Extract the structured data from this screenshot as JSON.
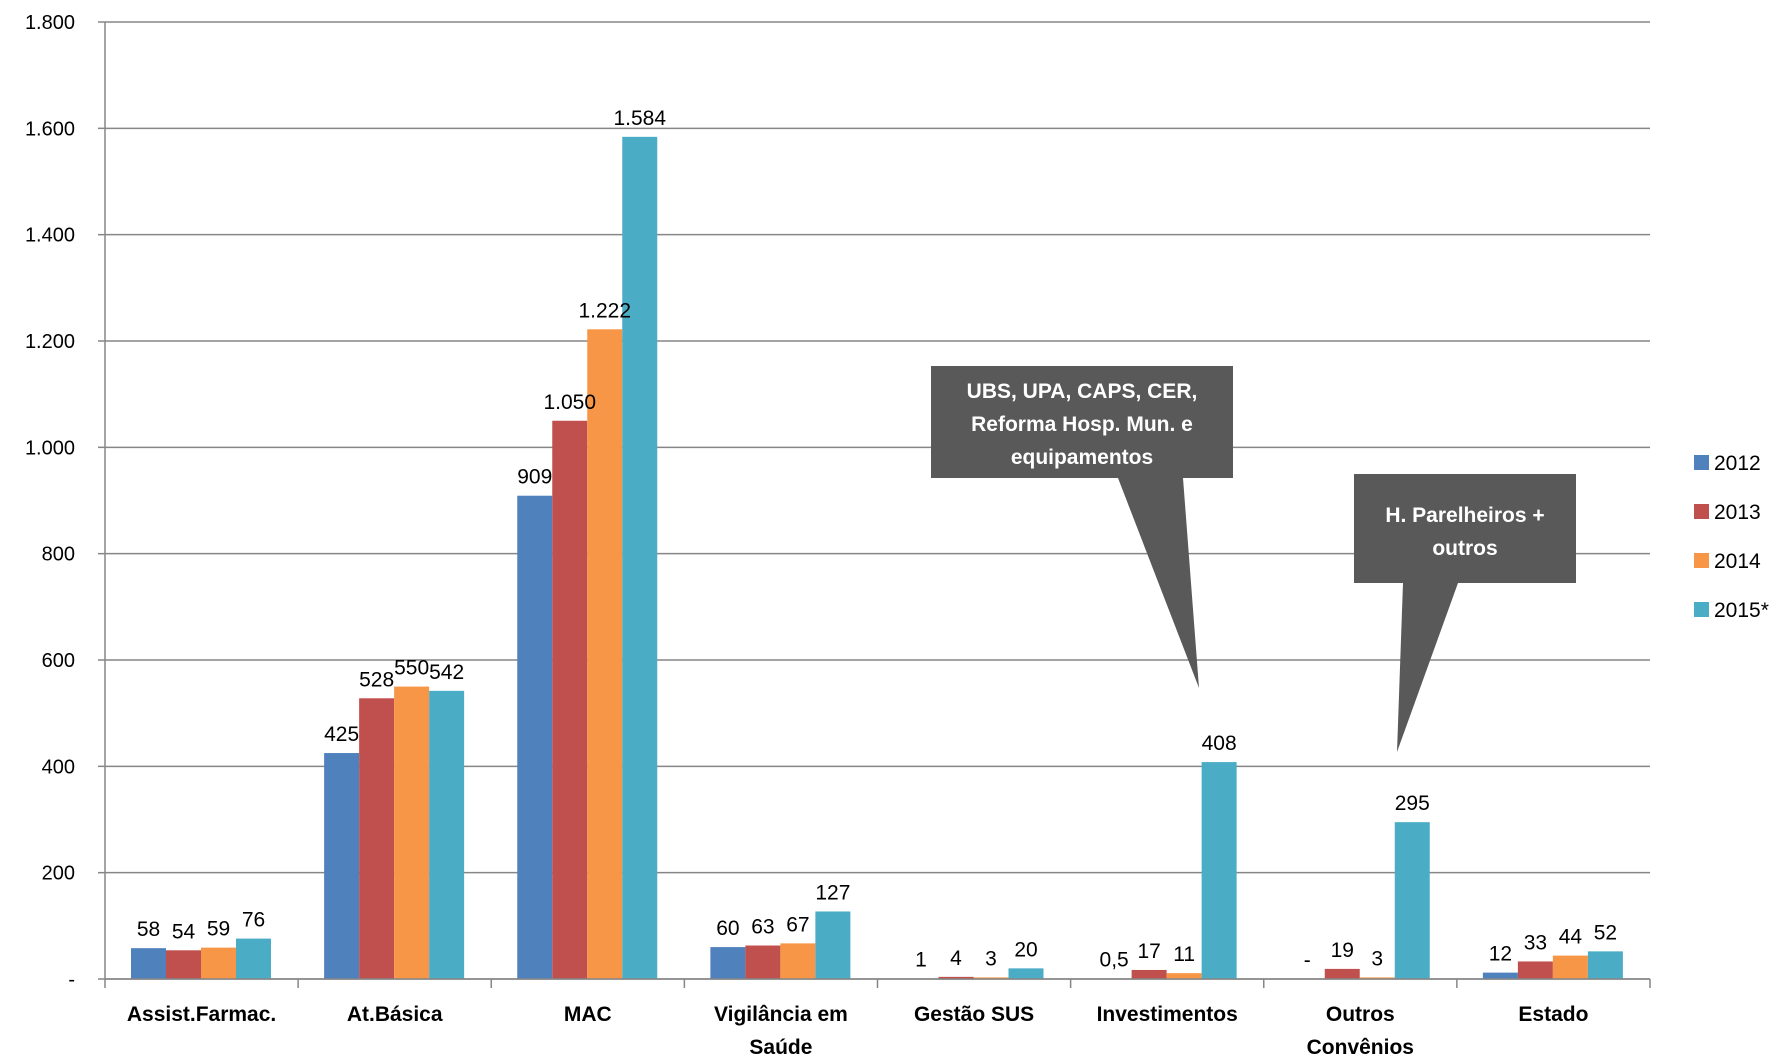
{
  "chart_data": {
    "type": "bar",
    "categories": [
      [
        "Assist.Farmac."
      ],
      [
        "At.Básica"
      ],
      [
        "MAC"
      ],
      [
        "Vigilância em",
        "Saúde"
      ],
      [
        "Gestão SUS"
      ],
      [
        "Investimentos"
      ],
      [
        "Outros",
        "Convênios"
      ],
      [
        "Estado"
      ]
    ],
    "series": [
      {
        "name": "2012",
        "color": "#4F81BD",
        "values": [
          58,
          425,
          909,
          60,
          1,
          0.5,
          0,
          12
        ],
        "labels": [
          "58",
          "425",
          "909",
          "60",
          "1",
          "0,5",
          "-",
          "12"
        ]
      },
      {
        "name": "2013",
        "color": "#C0504D",
        "values": [
          54,
          528,
          1050,
          63,
          4,
          17,
          19,
          33
        ],
        "labels": [
          "54",
          "528",
          "1.050",
          "63",
          "4",
          "17",
          "19",
          "33"
        ]
      },
      {
        "name": "2014",
        "color": "#F79646",
        "values": [
          59,
          550,
          1222,
          67,
          3,
          11,
          3,
          44
        ],
        "labels": [
          "59",
          "550",
          "1.222",
          "67",
          "3",
          "11",
          "3",
          "44"
        ]
      },
      {
        "name": "2015*",
        "color": "#4BACC6",
        "values": [
          76,
          542,
          1584,
          127,
          20,
          408,
          295,
          52
        ],
        "labels": [
          "76",
          "542",
          "1.584",
          "127",
          "20",
          "408",
          "295",
          "52"
        ]
      }
    ],
    "ylim": [
      0,
      1800
    ],
    "yticks": [
      0,
      200,
      400,
      600,
      800,
      1000,
      1200,
      1400,
      1600,
      1800
    ],
    "ytick_labels": [
      "-",
      "200",
      "400",
      "600",
      "800",
      "1.000",
      "1.200",
      "1.400",
      "1.600",
      "1.800"
    ],
    "grid": true,
    "legend_position": "right",
    "annotations": [
      {
        "lines": [
          "UBS, UPA, CAPS, CER,",
          "Reforma Hosp. Mun. e",
          "equipamentos"
        ],
        "category": "Investimentos"
      },
      {
        "lines": [
          "H. Parelheiros +",
          "outros"
        ],
        "category": "Outros Convênios"
      }
    ],
    "callout_color": "#595959",
    "grid_color": "#868686"
  }
}
